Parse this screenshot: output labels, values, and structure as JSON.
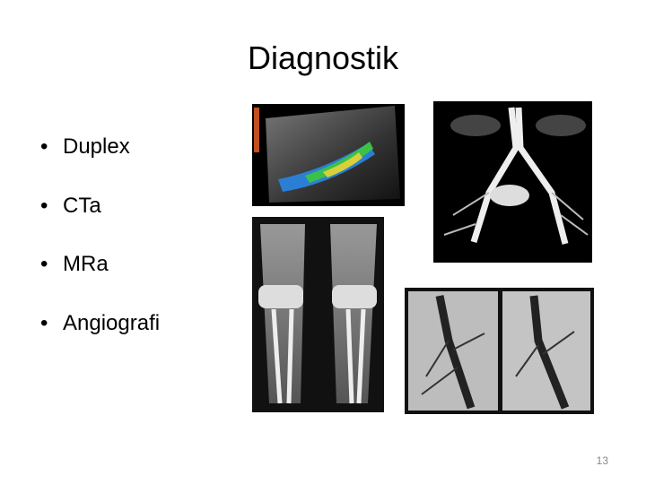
{
  "title": "Diagnostik",
  "bullets": [
    "Duplex",
    "CTa",
    "MRa",
    "Angiografi"
  ],
  "slide_number": "13"
}
